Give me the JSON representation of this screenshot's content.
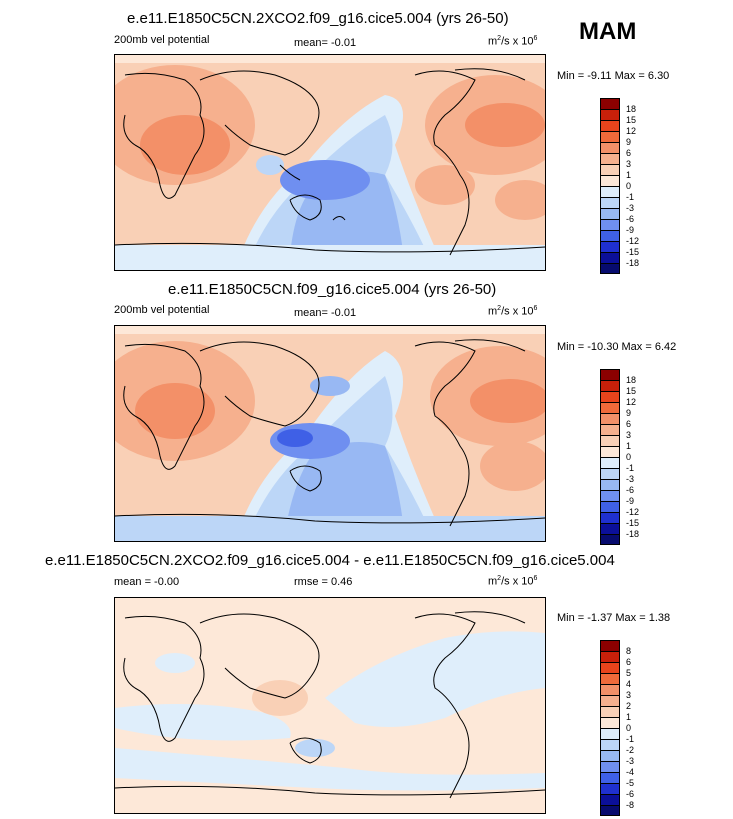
{
  "season": "MAM",
  "panels": [
    {
      "title": "e.e11.E1850C5CN.2XCO2.f09_g16.cice5.004 (yrs 26-50)",
      "left_label": "200mb vel potential",
      "center_label": "mean=  -0.01",
      "right_label_base": "m",
      "right_label_sup": "2",
      "right_label_mid": "/s x 10",
      "right_label_exp": "6",
      "minmax": "Min =  -9.11 Max =  6.30",
      "scale": "full"
    },
    {
      "title": "e.e11.E1850C5CN.f09_g16.cice5.004 (yrs 26-50)",
      "left_label": "200mb vel potential",
      "center_label": "mean=  -0.01",
      "right_label_base": "m",
      "right_label_sup": "2",
      "right_label_mid": "/s x 10",
      "right_label_exp": "6",
      "minmax": "Min = -10.30 Max =  6.42",
      "scale": "full"
    },
    {
      "title": "e.e11.E1850C5CN.2XCO2.f09_g16.cice5.004 - e.e11.E1850C5CN.f09_g16.cice5.004",
      "left_label": "mean =  -0.00",
      "center_label": "rmse =  0.46",
      "right_label_base": "m",
      "right_label_sup": "2",
      "right_label_mid": "/s x 10",
      "right_label_exp": "6",
      "minmax": "Min =  -1.37 Max =  1.38",
      "scale": "diff"
    }
  ],
  "colorbars": {
    "full": {
      "labels": [
        "18",
        "15",
        "12",
        "9",
        "6",
        "3",
        "1",
        "0",
        "-1",
        "-3",
        "-6",
        "-9",
        "-12",
        "-15",
        "-18"
      ],
      "colors": [
        "#8b0000",
        "#c8200a",
        "#e8441c",
        "#f06a3a",
        "#f39068",
        "#f6b08e",
        "#f9d0b6",
        "#fde8d8",
        "#dfeefb",
        "#bcd6f7",
        "#98b8f3",
        "#6f8ff0",
        "#3f60e6",
        "#1f30cf",
        "#0b0f99",
        "#070b6e"
      ]
    },
    "diff": {
      "labels": [
        "8",
        "6",
        "5",
        "4",
        "3",
        "2",
        "1",
        "0",
        "-1",
        "-2",
        "-3",
        "-4",
        "-5",
        "-6",
        "-8"
      ],
      "colors": [
        "#8b0000",
        "#c8200a",
        "#e8441c",
        "#f06a3a",
        "#f39068",
        "#f6b08e",
        "#f9d0b6",
        "#fde8d8",
        "#dfeefb",
        "#bcd6f7",
        "#98b8f3",
        "#6f8ff0",
        "#3f60e6",
        "#1f30cf",
        "#0b0f99",
        "#070b6e"
      ]
    }
  }
}
